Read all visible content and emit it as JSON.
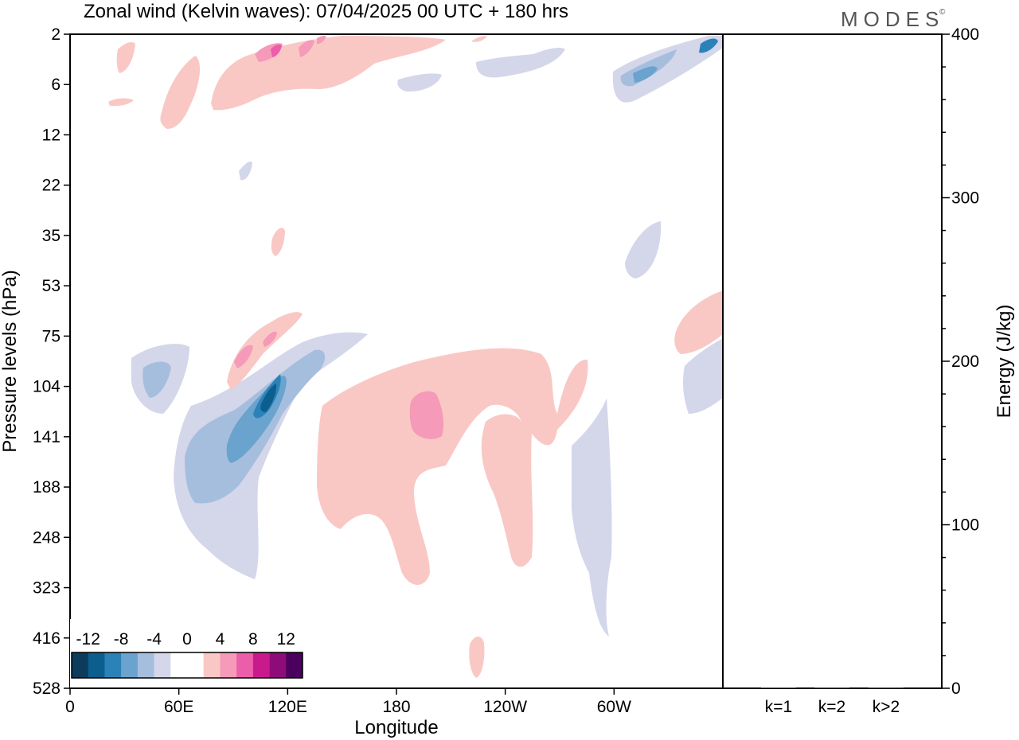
{
  "chart_data": {
    "type": "heatmap",
    "title": "Zonal wind (Kelvin waves):  07/04/2025  00 UTC  + 180 hrs",
    "logo": "MODES",
    "logo_mark": "©",
    "xlabel": "Longitude",
    "ylabel": "Pressure levels (hPa)",
    "x_ticks": [
      "0",
      "60E",
      "120E",
      "180",
      "120W",
      "60W"
    ],
    "y_ticks": [
      "2",
      "6",
      "12",
      "22",
      "35",
      "53",
      "75",
      "104",
      "141",
      "188",
      "248",
      "323",
      "416",
      "528"
    ],
    "colorbar": {
      "labels": [
        "-12",
        "-8",
        "-4",
        "0",
        "4",
        "8",
        "12"
      ],
      "colors": [
        "#0d3b5c",
        "#0b5e8e",
        "#2b82b8",
        "#6aa3cd",
        "#a6bedd",
        "#d4d6ea",
        "#ffffff",
        "#ffffff",
        "#f9c8c5",
        "#f59ab8",
        "#ec5ea9",
        "#c91a8c",
        "#8e0c79",
        "#4b0060"
      ]
    },
    "energy_panel": {
      "ylabel": "Energy (J/kg)",
      "y_ticks": [
        "0",
        "100",
        "200",
        "300",
        "400"
      ],
      "ylim": [
        0,
        400
      ],
      "categories": [
        "k=1",
        "k=2",
        "k>2"
      ],
      "values": [
        0.5,
        0.4,
        0.4
      ]
    },
    "anomalies": [
      {
        "cx": 100,
        "cy": 150,
        "level": "-8"
      },
      {
        "cx": 108,
        "cy": 120,
        "level": "-12"
      },
      {
        "cx": 60,
        "cy": 140,
        "level": "-4"
      },
      {
        "cx": 40,
        "cy": 100,
        "level": "-4"
      },
      {
        "cx": 195,
        "cy": 130,
        "level": "8"
      },
      {
        "cx": 190,
        "cy": 160,
        "level": "4"
      },
      {
        "cx": 95,
        "cy": 85,
        "level": "8"
      },
      {
        "cx": 118,
        "cy": 4,
        "level": "8"
      },
      {
        "cx": 300,
        "cy": 5,
        "level": "-8"
      },
      {
        "cx": 245,
        "cy": 4,
        "level": "-2"
      }
    ]
  }
}
